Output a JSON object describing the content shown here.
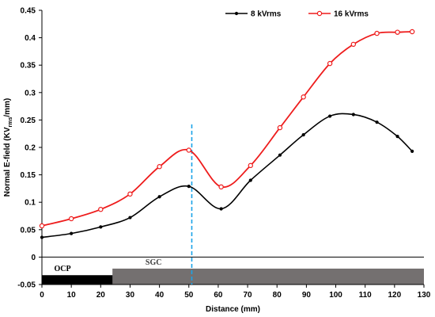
{
  "chart_data": {
    "type": "line",
    "title": "",
    "xlabel": "Distance (mm)",
    "ylabel": {
      "prefix": "Normal E-field (KV",
      "subscript": "rms",
      "suffix": "/mm)"
    },
    "xlim": [
      0,
      130
    ],
    "ylim": [
      -0.05,
      0.45
    ],
    "xticks": [
      0,
      10,
      20,
      30,
      40,
      50,
      60,
      70,
      80,
      90,
      100,
      110,
      120,
      130
    ],
    "yticks": [
      -0.05,
      0,
      0.05,
      0.1,
      0.15,
      0.2,
      0.25,
      0.3,
      0.35,
      0.4,
      0.45
    ],
    "grid": false,
    "legend_position": "top-right",
    "series": [
      {
        "name": "8 kVrms",
        "color": "#000000",
        "marker": "filled-circle",
        "x": [
          0,
          10,
          20,
          30,
          40,
          50,
          61,
          71,
          81,
          89,
          98,
          106,
          114,
          121,
          126
        ],
        "y": [
          0.036,
          0.043,
          0.055,
          0.072,
          0.11,
          0.129,
          0.088,
          0.14,
          0.186,
          0.223,
          0.257,
          0.26,
          0.246,
          0.22,
          0.193
        ]
      },
      {
        "name": "16 kVrms",
        "color": "#ee1c1c",
        "marker": "open-circle",
        "x": [
          0,
          10,
          20,
          30,
          40,
          50,
          61,
          71,
          81,
          89,
          98,
          106,
          114,
          121,
          126
        ],
        "y": [
          0.057,
          0.07,
          0.087,
          0.115,
          0.165,
          0.195,
          0.128,
          0.167,
          0.236,
          0.292,
          0.353,
          0.388,
          0.408,
          0.41,
          0.411
        ]
      }
    ],
    "boundary": {
      "x": 51,
      "color": "#1aa3e8",
      "style": "dashed"
    },
    "regions": [
      {
        "label": "OCP",
        "x_start": 0,
        "x_end": 51,
        "y_top": -0.033,
        "y_bottom": -0.05,
        "color": "#000000",
        "label_x": 7,
        "label_color": "#000000"
      },
      {
        "label": "SGC",
        "x_start": 24,
        "x_end": 130,
        "y_top": -0.021,
        "y_bottom": -0.05,
        "color": "#747070",
        "label_x": 38,
        "label_color": "#3a3a3a"
      }
    ]
  }
}
